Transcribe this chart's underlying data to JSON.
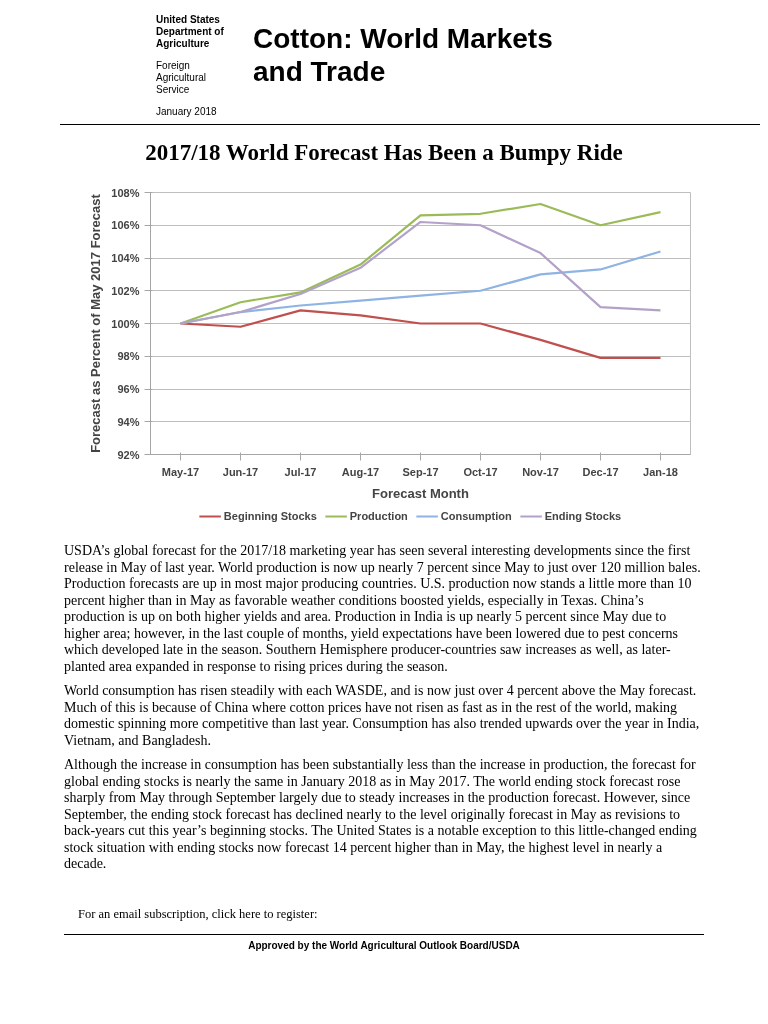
{
  "chart_data": {
    "type": "line",
    "title": "2017/18 World Forecast Has Been a Bumpy Ride",
    "xlabel": "Forecast Month",
    "ylabel": "Forecast as Percent of May 2017 Forecast",
    "categories": [
      "May-17",
      "Jun-17",
      "Jul-17",
      "Aug-17",
      "Sep-17",
      "Oct-17",
      "Nov-17",
      "Dec-17",
      "Jan-18"
    ],
    "series": [
      {
        "name": "Beginning Stocks",
        "color": "#c0504d",
        "values": [
          100,
          99.8,
          100.8,
          100.5,
          100.0,
          100.0,
          99.0,
          97.9,
          97.9
        ]
      },
      {
        "name": "Production",
        "color": "#9bbb59",
        "values": [
          100,
          101.3,
          101.9,
          103.6,
          106.6,
          106.7,
          107.3,
          106.0,
          106.8
        ]
      },
      {
        "name": "Consumption",
        "color": "#8eb4e3",
        "values": [
          100,
          100.7,
          101.1,
          101.4,
          101.7,
          102.0,
          103.0,
          103.3,
          104.4
        ]
      },
      {
        "name": "Ending Stocks",
        "color": "#b3a2c7",
        "values": [
          100,
          100.7,
          101.8,
          103.4,
          106.2,
          106.0,
          104.3,
          101.0,
          100.8
        ]
      }
    ],
    "ylim": [
      92,
      108
    ],
    "yticks": [
      {
        "value": 92,
        "label": "92%"
      },
      {
        "value": 94,
        "label": "94%"
      },
      {
        "value": 96,
        "label": "96%"
      },
      {
        "value": 98,
        "label": "98%"
      },
      {
        "value": 100,
        "label": "100%"
      },
      {
        "value": 102,
        "label": "102%"
      },
      {
        "value": 104,
        "label": "104%"
      },
      {
        "value": 106,
        "label": "106%"
      },
      {
        "value": 108,
        "label": "108%"
      }
    ],
    "grid": "y",
    "legend": "bottom",
    "marker": "none",
    "line_style": "solid",
    "annotations": [
      "United States Department of Agriculture",
      "Foreign Agricultural Service",
      "January 2018",
      "Cotton: World Markets and Trade",
      "USDA’s global forecast for the 2017/18 marketing year has seen several interesting developments since the first release in May of last year.  World production is now up nearly 7 percent since May to just over 120 million bales.  Production forecasts are up in most major producing countries.  U.S. production now stands a little more than 10 percent higher than in May as favorable weather conditions boosted yields, especially in Texas.  China’s production is up on both higher yields and area.  Production in India is up nearly 5 percent since May due to higher area; however, in the last couple of months, yield expectations have been lowered due to pest concerns which developed late in the season.  Southern Hemisphere producer-countries saw increases as well, as later-planted area expanded in response to rising prices during the season.",
      "World consumption has risen steadily with each WASDE, and is now just over 4 percent above the May forecast.  Much of this is because of China where cotton prices have not risen as fast as in the rest of the world, making domestic spinning more competitive than last year.  Consumption has also trended upwards over the year in India, Vietnam, and Bangladesh.",
      "Although the increase in consumption has been substantially less than the increase in production, the forecast for global ending stocks is nearly the same in January 2018 as in May 2017.  The world ending stock forecast rose sharply from May through September largely due to steady increases in the production forecast. However, since September, the ending stock forecast has declined nearly to the level originally forecast in May as revisions to back-years cut this year’s beginning stocks.  The United States is a notable exception to this little-changed ending stock situation with ending stocks now forecast 14 percent higher than in May, the highest level in nearly a decade.",
      "For an email subscription, click here to register:",
      "Approved by the World Agricultural Outlook Board/USDA"
    ]
  }
}
